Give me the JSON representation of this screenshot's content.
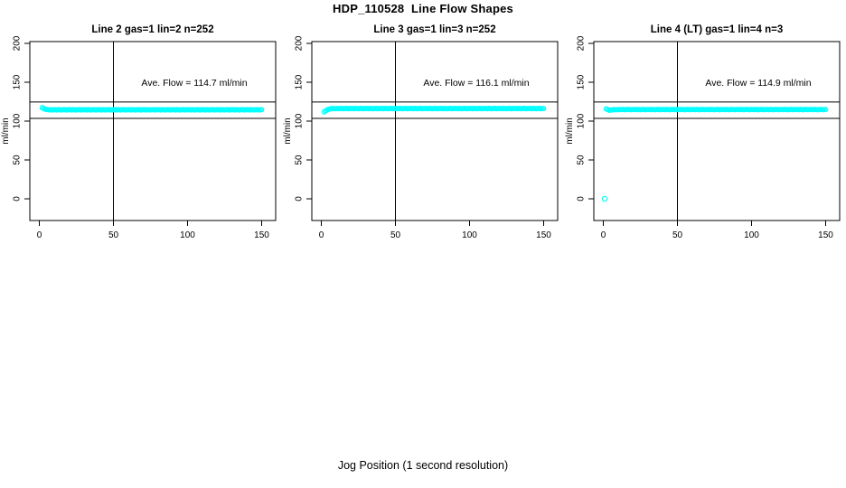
{
  "figure": {
    "title": "HDP_110528  Line Flow Shapes",
    "xlabel": "Jog Position (1 second resolution)",
    "ylabel": "ml/min",
    "accent_color": "#00FFFF",
    "axis_color": "#000000"
  },
  "chart_data": {
    "type": "scatter",
    "title": "HDP_110528  Line Flow Shapes",
    "xlabel": "Jog Position (1 second resolution)",
    "ylabel": "ml/min",
    "legend": "none",
    "panels": [
      {
        "title": "Line 2 gas=1 lin=2 n=252",
        "annotation": "Ave. Flow =  114.7  ml/min",
        "ave_flow": 114.7,
        "n": 252,
        "xlim": [
          0,
          150
        ],
        "ylim": [
          0,
          200
        ],
        "xticks": [
          0,
          50,
          100,
          150
        ],
        "yticks": [
          0,
          50,
          100,
          150,
          200
        ],
        "vline_x": 50,
        "ref_lines_y": [
          103.5,
          124.5
        ],
        "series": {
          "name": "line-2-flow",
          "color": "#00FFFF",
          "marker": "open-circle",
          "x_start": 2,
          "x_step": 1,
          "y": [
            117.3,
            116.2,
            115.4,
            114.9,
            114.7,
            114.5,
            114.6,
            114.4,
            114.6,
            114.6,
            114.4,
            114.7,
            114.5,
            114.3,
            114.6,
            114.8,
            114.4,
            114.5,
            114.7,
            114.6,
            114.4,
            114.7,
            114.5,
            114.3,
            114.6,
            114.8,
            114.4,
            114.5,
            114.7,
            114.6,
            114.4,
            114.7,
            114.5,
            114.3,
            114.6,
            114.8,
            114.4,
            114.5,
            114.7,
            114.6,
            114.4,
            114.7,
            114.5,
            114.3,
            114.6,
            114.8,
            114.4,
            114.5,
            114.7,
            114.6,
            114.4,
            114.7,
            114.5,
            114.3,
            114.6,
            114.8,
            114.4,
            114.5,
            114.7,
            114.6,
            114.4,
            114.7,
            114.5,
            114.3,
            114.6,
            114.8,
            114.4,
            114.5,
            114.7,
            114.6,
            114.4,
            114.7,
            114.5,
            114.3,
            114.6,
            114.8,
            114.4,
            114.5,
            114.7,
            114.6,
            114.4,
            114.7,
            114.5,
            114.3,
            114.6,
            114.8,
            114.4,
            114.5,
            114.7,
            114.6,
            114.4,
            114.7,
            114.5,
            114.3,
            114.6,
            114.8,
            114.4,
            114.5,
            114.7,
            114.6,
            114.4,
            114.7,
            114.5,
            114.3,
            114.6,
            114.8,
            114.4,
            114.5,
            114.7,
            114.6,
            114.4,
            114.7,
            114.5,
            114.3,
            114.6,
            114.8,
            114.4,
            114.5,
            114.7,
            114.6,
            114.4,
            114.7,
            114.5,
            114.3,
            114.6,
            114.8,
            114.4,
            114.5,
            114.7,
            114.6,
            114.4,
            114.7,
            114.5,
            114.3,
            114.6,
            114.8,
            114.4,
            114.5,
            114.7,
            114.6,
            114.4,
            114.7,
            114.5,
            114.3,
            114.6,
            114.8,
            114.4,
            114.5,
            114.7
          ]
        },
        "outlier_points": []
      },
      {
        "title": "Line 3 gas=1 lin=3 n=252",
        "annotation": "Ave. Flow =  116.1  ml/min",
        "ave_flow": 116.1,
        "n": 252,
        "xlim": [
          0,
          150
        ],
        "ylim": [
          0,
          200
        ],
        "xticks": [
          0,
          50,
          100,
          150
        ],
        "yticks": [
          0,
          50,
          100,
          150,
          200
        ],
        "vline_x": 50,
        "ref_lines_y": [
          103.5,
          124.5
        ],
        "series": {
          "name": "line-3-flow",
          "color": "#00FFFF",
          "marker": "open-circle",
          "x_start": 2,
          "x_step": 1,
          "y": [
            111.8,
            113.2,
            114.4,
            115.2,
            115.7,
            115.9,
            116,
            116.1,
            116,
            116.2,
            116,
            116.3,
            116.1,
            115.9,
            116.2,
            116.3,
            116,
            116.1,
            116.2,
            116.2,
            116,
            116.3,
            116.1,
            115.9,
            116.2,
            116.3,
            116,
            116.1,
            116.2,
            116.2,
            116,
            116.3,
            116.1,
            115.9,
            116.2,
            116.3,
            116,
            116.1,
            116.2,
            116.2,
            116,
            116.3,
            116.1,
            115.9,
            116.2,
            116.3,
            116,
            116.1,
            116.2,
            116.2,
            116,
            116.3,
            116.1,
            115.9,
            116.2,
            116.3,
            116,
            116.1,
            116.2,
            116.2,
            116,
            116.3,
            116.1,
            115.9,
            116.2,
            116.3,
            116,
            116.1,
            116.2,
            116.2,
            116,
            116.3,
            116.1,
            115.9,
            116.2,
            116.3,
            116,
            116.1,
            116.2,
            116.2,
            116,
            116.3,
            116.1,
            115.9,
            116.2,
            116.3,
            116,
            116.1,
            116.2,
            116.2,
            116,
            116.3,
            116.1,
            115.9,
            116.2,
            116.3,
            116,
            116.1,
            116.2,
            116.2,
            116,
            116.3,
            116.1,
            115.9,
            116.2,
            116.3,
            116,
            116.1,
            116.2,
            116.2,
            116,
            116.3,
            116.1,
            115.9,
            116.2,
            116.3,
            116,
            116.1,
            116.2,
            116.2,
            116,
            116.3,
            116.1,
            115.9,
            116.2,
            116.3,
            116,
            116.1,
            116.2,
            116.2,
            116,
            116.3,
            116.1,
            115.9,
            116.2,
            116.3,
            116,
            116.1,
            116.2,
            116.2,
            116,
            116.3,
            116.1,
            115.9,
            116.2,
            116.3,
            116,
            116.1,
            116.2
          ]
        },
        "outlier_points": []
      },
      {
        "title": "Line 4 (LT) gas=1 lin=4 n=3",
        "annotation": "Ave. Flow =  114.9  ml/min",
        "ave_flow": 114.9,
        "n": 3,
        "xlim": [
          0,
          150
        ],
        "ylim": [
          0,
          200
        ],
        "xticks": [
          0,
          50,
          100,
          150
        ],
        "yticks": [
          0,
          50,
          100,
          150,
          200
        ],
        "vline_x": 50,
        "ref_lines_y": [
          103.5,
          124.5
        ],
        "series": {
          "name": "line-4-flow",
          "color": "#00FFFF",
          "marker": "open-circle",
          "x_start": 2,
          "x_step": 1,
          "y": [
            115.8,
            114.9,
            113.9,
            114.2,
            114.5,
            114.7,
            114.8,
            114.6,
            114.7,
            114.9,
            114.7,
            115,
            114.8,
            114.6,
            114.9,
            115.1,
            114.7,
            114.8,
            114.9,
            114.9,
            114.7,
            115,
            114.8,
            114.6,
            114.9,
            115.1,
            114.7,
            114.8,
            114.9,
            114.9,
            114.7,
            115,
            114.8,
            114.6,
            114.9,
            115.1,
            114.7,
            114.8,
            114.9,
            114.9,
            114.7,
            115,
            114.8,
            114.6,
            114.9,
            115.1,
            114.7,
            114.8,
            114.9,
            114.9,
            114.7,
            115,
            114.8,
            114.6,
            114.9,
            115.1,
            114.7,
            114.8,
            114.9,
            114.9,
            114.7,
            115,
            114.8,
            114.6,
            114.9,
            115.1,
            114.7,
            114.8,
            114.9,
            114.9,
            114.7,
            115,
            114.8,
            114.6,
            114.9,
            115.1,
            114.7,
            114.8,
            114.9,
            114.9,
            114.7,
            115,
            114.8,
            114.6,
            114.9,
            115.1,
            114.7,
            114.8,
            114.9,
            114.9,
            114.7,
            115,
            114.8,
            114.6,
            114.9,
            115.1,
            114.7,
            114.8,
            114.9,
            114.9,
            114.7,
            115,
            114.8,
            114.6,
            114.9,
            115.1,
            114.7,
            114.8,
            114.9,
            114.9,
            114.7,
            115,
            114.8,
            114.6,
            114.9,
            115.1,
            114.7,
            114.8,
            114.9,
            114.9,
            114.7,
            115,
            114.8,
            114.6,
            114.9,
            115.1,
            114.7,
            114.8,
            114.9,
            114.9,
            114.7,
            115,
            114.8,
            114.6,
            114.9,
            115.1,
            114.7,
            114.8,
            114.9,
            114.9,
            114.7,
            115,
            114.8,
            114.6,
            114.9,
            115.1,
            114.7,
            114.8,
            114.9
          ]
        },
        "outlier_points": [
          [
            1,
            0
          ]
        ]
      }
    ]
  }
}
